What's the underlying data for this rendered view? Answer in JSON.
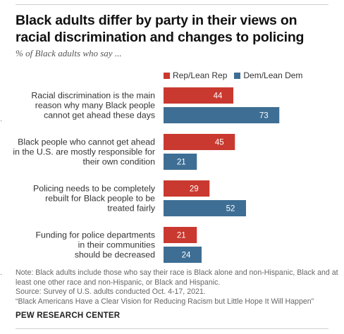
{
  "title": "Black adults differ by party in their views on racial discrimination and changes to policing",
  "subtitle": "% of Black adults who say ...",
  "colors": {
    "rep": "#c9392f",
    "dem": "#3e6e94"
  },
  "chart_data": {
    "type": "bar",
    "orientation": "horizontal",
    "categories": [
      [
        "Racial discrimination is the main",
        "reason why many Black people",
        "cannot get ahead these days"
      ],
      [
        "Black people who cannot get ahead",
        "in the U.S. are mostly responsible for",
        "their own condition"
      ],
      [
        "Policing needs to be completely",
        "rebuilt for Black people to be",
        "treated fairly"
      ],
      [
        "Funding for police departments",
        "in their communities",
        "should be decreased"
      ]
    ],
    "series": [
      {
        "name": "Rep/Lean Rep",
        "values": [
          44,
          45,
          29,
          21
        ]
      },
      {
        "name": "Dem/Lean Dem",
        "values": [
          73,
          21,
          52,
          24
        ]
      }
    ],
    "xlim": [
      0,
      100
    ],
    "legend": "top"
  },
  "notes": {
    "note": "Note: Black adults include those who say their race is Black alone and non-Hispanic, Black and at least one other race and non-Hispanic, or Black and Hispanic.",
    "source": "Source: Survey of U.S. adults conducted Oct. 4-17, 2021.",
    "report": "“Black Americans Have a Clear Vision for Reducing Racism but Little Hope It Will Happen”"
  },
  "brand": "PEW RESEARCH CENTER"
}
